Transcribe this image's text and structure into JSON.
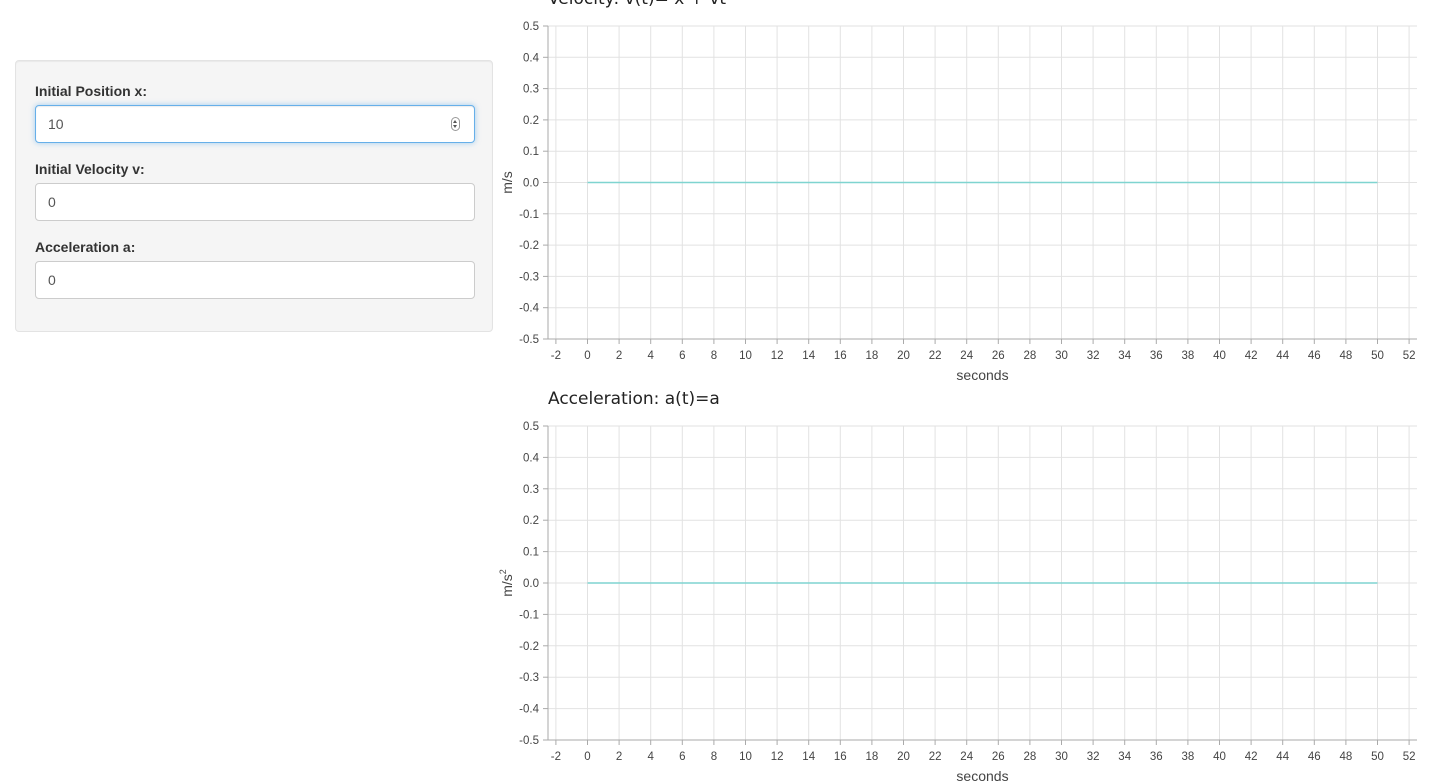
{
  "controls": {
    "position": {
      "label": "Initial Position x:",
      "value": "10"
    },
    "velocity": {
      "label": "Initial Velocity v:",
      "value": "0"
    },
    "acceleration": {
      "label": "Acceleration a:",
      "value": "0"
    }
  },
  "chart_data": [
    {
      "type": "line",
      "title": "Velocity: v(t)= x + vt",
      "xlabel": "seconds",
      "ylabel": "m/s",
      "xlim": [
        -2.5,
        52.5
      ],
      "ylim": [
        -0.5,
        0.5
      ],
      "xticks": [
        -2,
        0,
        2,
        4,
        6,
        8,
        10,
        12,
        14,
        16,
        18,
        20,
        22,
        24,
        26,
        28,
        30,
        32,
        34,
        36,
        38,
        40,
        42,
        44,
        46,
        48,
        50,
        52
      ],
      "yticks": [
        0.5,
        0.4,
        0.3,
        0.2,
        0.1,
        0.0,
        -0.1,
        -0.2,
        -0.3,
        -0.4,
        -0.5
      ],
      "grid": true,
      "series": [
        {
          "x": [
            0,
            50
          ],
          "y": [
            0,
            0
          ],
          "color": "#7fd4d0"
        }
      ]
    },
    {
      "type": "line",
      "title": "Acceleration: a(t)=a",
      "xlabel": "seconds",
      "ylabel": "m/s",
      "ylabel_superscript": "2",
      "xlim": [
        -2.5,
        52.5
      ],
      "ylim": [
        -0.5,
        0.5
      ],
      "xticks": [
        -2,
        0,
        2,
        4,
        6,
        8,
        10,
        12,
        14,
        16,
        18,
        20,
        22,
        24,
        26,
        28,
        30,
        32,
        34,
        36,
        38,
        40,
        42,
        44,
        46,
        48,
        50,
        52
      ],
      "yticks": [
        0.5,
        0.4,
        0.3,
        0.2,
        0.1,
        0.0,
        -0.1,
        -0.2,
        -0.3,
        -0.4,
        -0.5
      ],
      "grid": true,
      "series": [
        {
          "x": [
            0,
            50
          ],
          "y": [
            0,
            0
          ],
          "color": "#7fd4d0"
        }
      ]
    }
  ]
}
